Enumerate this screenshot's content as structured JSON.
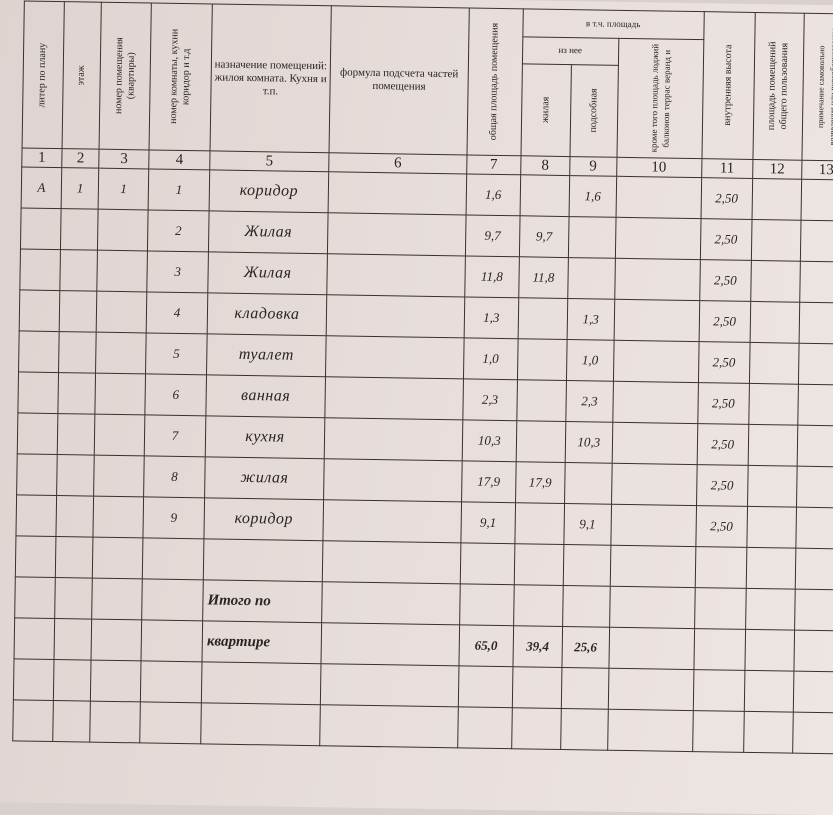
{
  "headers": {
    "c1": "литер по плану",
    "c2": "этаж",
    "c3": "номер помещения (квартиры)",
    "c4": "номер комнаты, кухни коридор и т.д",
    "c5": "назначение помещений: жилоя комната. Кухня и т.п.",
    "c6": "формула подсчета частей помещения",
    "c7": "общая площадь помещения",
    "group": "в т.ч. площадь",
    "subgroup": "из нее",
    "c8": "жилая",
    "c9": "подсобная",
    "c10": "кроме того площадь лоджий балконов террас веранд и",
    "c11": "внутренняя высота",
    "c12": "площадь помещений общего пользования",
    "c13": "примечание самовольно возведения или переоборудования"
  },
  "column_numbers": [
    "1",
    "2",
    "3",
    "4",
    "5",
    "6",
    "7",
    "8",
    "9",
    "10",
    "11",
    "12",
    "13"
  ],
  "rows": [
    {
      "liter": "А",
      "floor": "1",
      "apt": "1",
      "room": "1",
      "name": "коридор",
      "total": "1,6",
      "living": "",
      "aux": "1,6",
      "height": "2,50"
    },
    {
      "liter": "",
      "floor": "",
      "apt": "",
      "room": "2",
      "name": "Жилая",
      "total": "9,7",
      "living": "9,7",
      "aux": "",
      "height": "2,50"
    },
    {
      "liter": "",
      "floor": "",
      "apt": "",
      "room": "3",
      "name": "Жилая",
      "total": "11,8",
      "living": "11,8",
      "aux": "",
      "height": "2,50"
    },
    {
      "liter": "",
      "floor": "",
      "apt": "",
      "room": "4",
      "name": "кладовка",
      "total": "1,3",
      "living": "",
      "aux": "1,3",
      "height": "2,50"
    },
    {
      "liter": "",
      "floor": "",
      "apt": "",
      "room": "5",
      "name": "туалет",
      "total": "1,0",
      "living": "",
      "aux": "1,0",
      "height": "2,50"
    },
    {
      "liter": "",
      "floor": "",
      "apt": "",
      "room": "6",
      "name": "ванная",
      "total": "2,3",
      "living": "",
      "aux": "2,3",
      "height": "2,50"
    },
    {
      "liter": "",
      "floor": "",
      "apt": "",
      "room": "7",
      "name": "кухня",
      "total": "10,3",
      "living": "",
      "aux": "10,3",
      "height": "2,50"
    },
    {
      "liter": "",
      "floor": "",
      "apt": "",
      "room": "8",
      "name": "жилая",
      "total": "17,9",
      "living": "17,9",
      "aux": "",
      "height": "2,50"
    },
    {
      "liter": "",
      "floor": "",
      "apt": "",
      "room": "9",
      "name": "коридор",
      "total": "9,1",
      "living": "",
      "aux": "9,1",
      "height": "2,50"
    }
  ],
  "totals": {
    "label1": "Итого по",
    "label2": "квартире",
    "total": "65,0",
    "living": "39,4",
    "aux": "25,6"
  }
}
